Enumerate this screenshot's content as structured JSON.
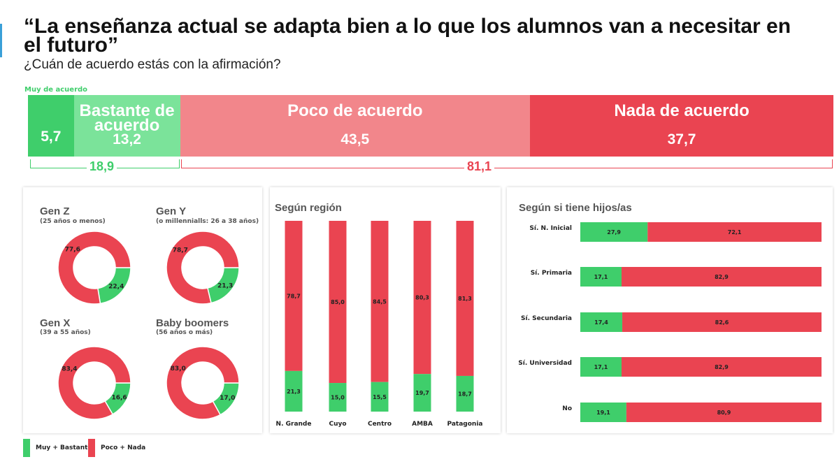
{
  "header": {
    "title": "“La enseñanza actual se adapta bien a lo que los alumnos van a necesitar en el futuro”",
    "subtitle": "¿Cuán de acuerdo estás con la afirmación?",
    "muy_label": "Muy de acuerdo"
  },
  "colors": {
    "green": "#3fce6b",
    "light_green": "#7be39a",
    "light_red": "#f2868b",
    "red": "#ea4451",
    "accent": "#3aa0d8"
  },
  "chart_data": [
    {
      "type": "bar",
      "orientation": "horizontal-stacked",
      "categories": [
        "Muy de acuerdo",
        "Bastante de acuerdo",
        "Poco de acuerdo",
        "Nada de acuerdo"
      ],
      "display_labels": [
        "",
        "Bastante de acuerdo",
        "Poco de acuerdo",
        "Nada de acuerdo"
      ],
      "values": [
        5.7,
        13.2,
        43.5,
        37.7
      ],
      "value_labels": [
        "5,7",
        "13,2",
        "43,5",
        "37,7"
      ],
      "groups": [
        {
          "label": "18,9",
          "value": 18.9,
          "members": [
            0,
            1
          ]
        },
        {
          "label": "81,1",
          "value": 81.1,
          "members": [
            2,
            3
          ]
        }
      ]
    },
    {
      "type": "pie",
      "variant": "donut",
      "charts": [
        {
          "title": "Gen Z",
          "subtitle": "(25 años o menos)",
          "values": [
            22.4,
            77.6
          ],
          "labels": [
            "22,4",
            "77,6"
          ]
        },
        {
          "title": "Gen Y",
          "subtitle": "(o millennialls: 26 a 38 años)",
          "values": [
            21.3,
            78.7
          ],
          "labels": [
            "21,3",
            "78,7"
          ]
        },
        {
          "title": "Gen X",
          "subtitle": "(39 a 55 años)",
          "values": [
            16.6,
            83.4
          ],
          "labels": [
            "16,6",
            "83,4"
          ]
        },
        {
          "title": "Baby boomers",
          "subtitle": "(56 años o más)",
          "values": [
            17.0,
            83.0
          ],
          "labels": [
            "17,0",
            "83,0"
          ]
        }
      ],
      "series": [
        {
          "name": "Muy + Bastante"
        },
        {
          "name": "Poco + Nada"
        }
      ]
    },
    {
      "type": "bar",
      "orientation": "vertical-stacked",
      "title": "Según región",
      "categories": [
        "N. Grande",
        "Cuyo",
        "Centro",
        "AMBA",
        "Patagonia"
      ],
      "series": [
        {
          "name": "Muy + Bastante",
          "values": [
            21.3,
            15.0,
            15.5,
            19.7,
            18.7
          ],
          "labels": [
            "21,3",
            "15,0",
            "15,5",
            "19,7",
            "18,7"
          ]
        },
        {
          "name": "Poco + Nada",
          "values": [
            78.7,
            85.0,
            84.5,
            80.3,
            81.3
          ],
          "labels": [
            "78,7",
            "85,0",
            "84,5",
            "80,3",
            "81,3"
          ]
        }
      ],
      "ylim": [
        0,
        100
      ]
    },
    {
      "type": "bar",
      "orientation": "horizontal-stacked",
      "title": "Según si tiene hijos/as",
      "categories": [
        "Sí. N. Inicial",
        "Sí. Primaria",
        "Sí. Secundaria",
        "Sí. Universidad",
        "No"
      ],
      "series": [
        {
          "name": "Muy + Bastante",
          "values": [
            27.9,
            17.1,
            17.4,
            17.1,
            19.1
          ],
          "labels": [
            "27,9",
            "17,1",
            "17,4",
            "17,1",
            "19,1"
          ]
        },
        {
          "name": "Poco + Nada",
          "values": [
            72.1,
            82.9,
            82.6,
            82.9,
            80.9
          ],
          "labels": [
            "72,1",
            "82,9",
            "82,6",
            "82,9",
            "80,9"
          ]
        }
      ],
      "xlim": [
        0,
        100
      ]
    }
  ],
  "legend": {
    "items": [
      {
        "label": "Muy + Bastante",
        "color": "#3fce6b"
      },
      {
        "label": "Poco + Nada",
        "color": "#ea4451"
      }
    ]
  }
}
